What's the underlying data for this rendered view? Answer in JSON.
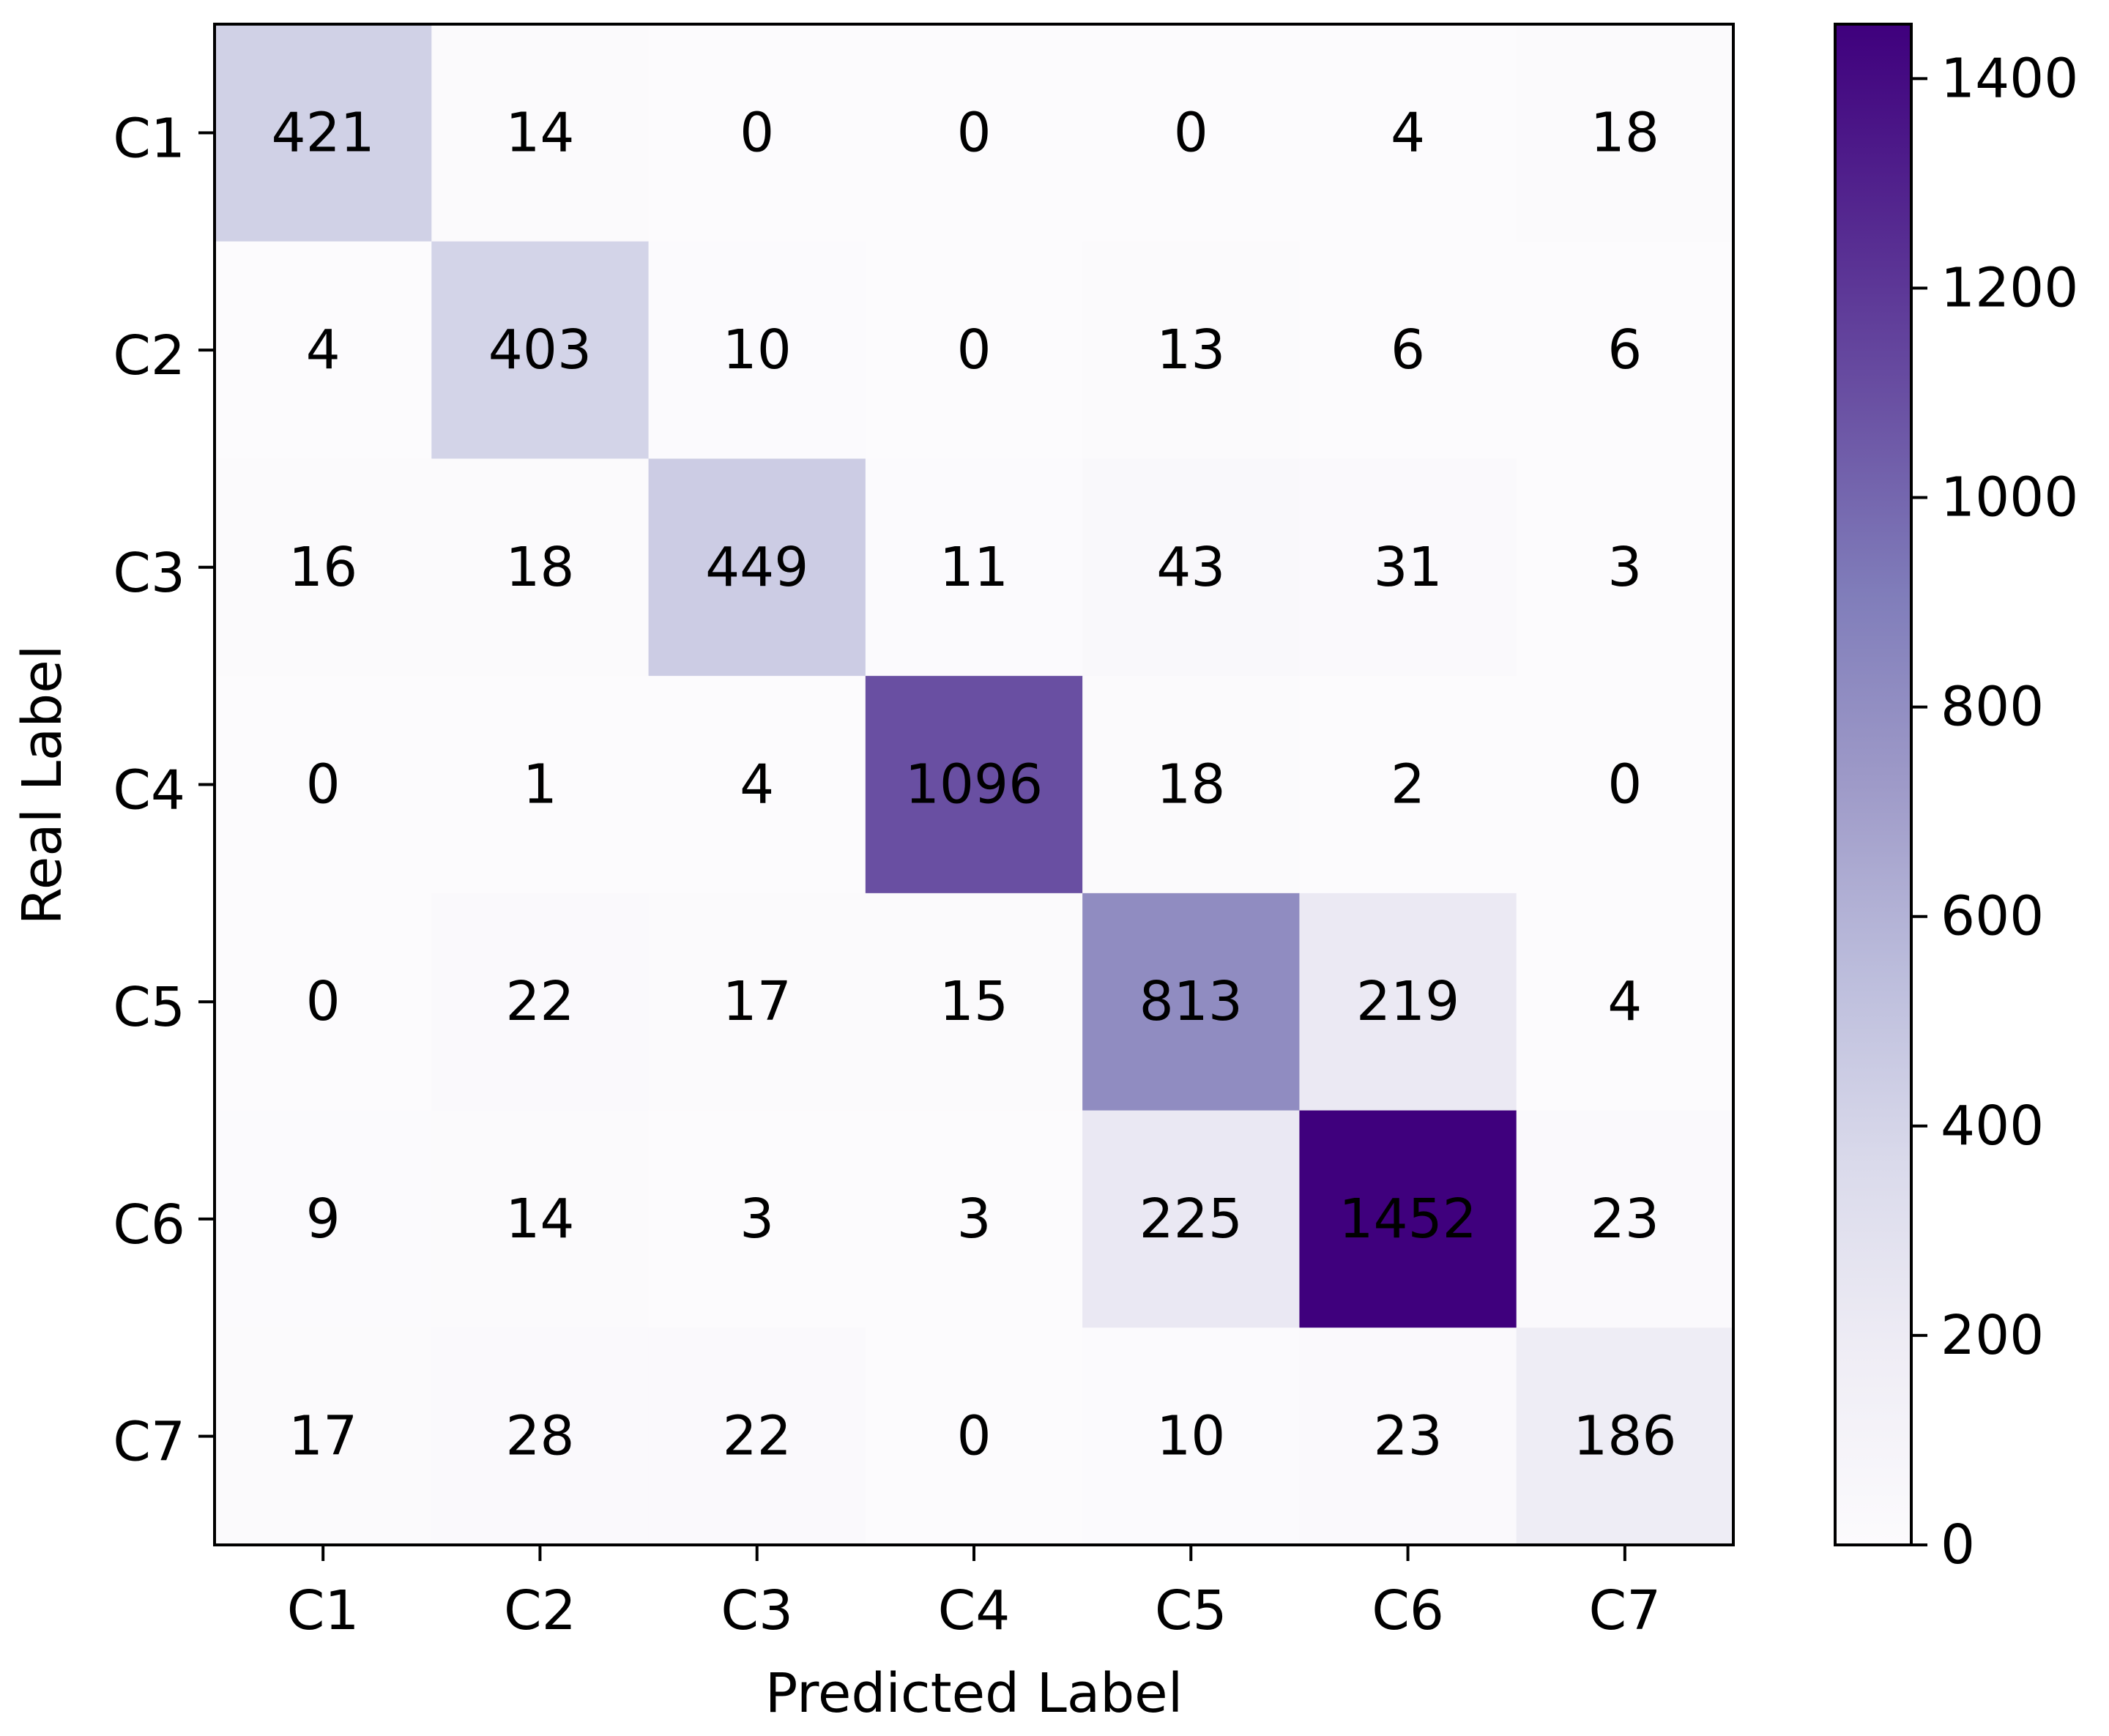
{
  "chart_data": {
    "type": "heatmap",
    "title": "",
    "xlabel": "Predicted Label",
    "ylabel": "Real Label",
    "x_categories": [
      "C1",
      "C2",
      "C3",
      "C4",
      "C5",
      "C6",
      "C7"
    ],
    "y_categories": [
      "C1",
      "C2",
      "C3",
      "C4",
      "C5",
      "C6",
      "C7"
    ],
    "matrix": [
      [
        421,
        14,
        0,
        0,
        0,
        4,
        18
      ],
      [
        4,
        403,
        10,
        0,
        13,
        6,
        6
      ],
      [
        16,
        18,
        449,
        11,
        43,
        31,
        3
      ],
      [
        0,
        1,
        4,
        1096,
        18,
        2,
        0
      ],
      [
        0,
        22,
        17,
        15,
        813,
        219,
        4
      ],
      [
        9,
        14,
        3,
        3,
        225,
        1452,
        23
      ],
      [
        17,
        28,
        22,
        0,
        10,
        23,
        186
      ]
    ],
    "colorbar": {
      "min": 0,
      "max": 1452,
      "ticks": [
        0,
        200,
        400,
        600,
        800,
        1000,
        1200,
        1400
      ],
      "tick_labels": [
        "0",
        "200",
        "400",
        "600",
        "800",
        "1000",
        "1200",
        "1400"
      ],
      "colormap": "Purples"
    },
    "colors": {
      "low": "#fcfbfd",
      "high": "#3f007d",
      "text_dark": "#000000",
      "frame": "#000000"
    }
  }
}
